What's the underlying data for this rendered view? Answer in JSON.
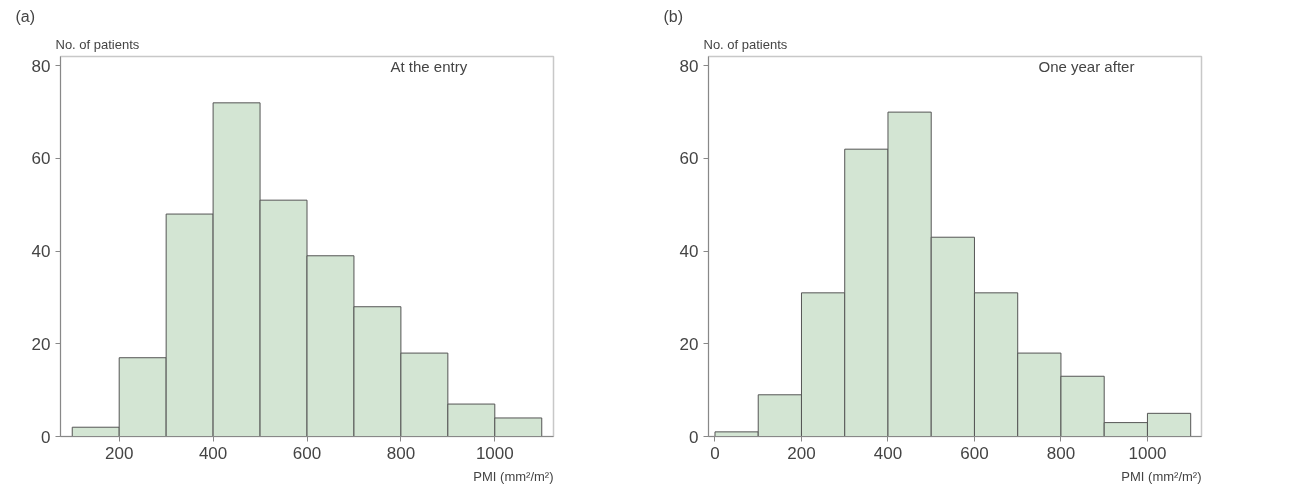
{
  "chart_data": [
    {
      "type": "histogram",
      "title": "(a)",
      "ylabel": "No. of patients",
      "xlabel": "PMI (mm²/m²)",
      "annotations": [
        "At the entry"
      ],
      "bins": [
        100,
        200,
        300,
        400,
        500,
        600,
        700,
        800,
        900,
        1000,
        1100
      ],
      "values": [
        2,
        17,
        48,
        72,
        51,
        39,
        28,
        18,
        7,
        4
      ],
      "color": "#d3e5d3",
      "xlim": [
        75,
        1125
      ],
      "xticks": [
        200,
        400,
        600,
        800,
        1000
      ],
      "ylim": [
        0,
        82
      ],
      "yticks": [
        0,
        20,
        40,
        60,
        80
      ],
      "grid": false
    },
    {
      "type": "histogram",
      "title": "(b)",
      "ylabel": "No. of patients",
      "xlabel": "PMI (mm²/m²)",
      "annotations": [
        "One year after"
      ],
      "bins": [
        0,
        100,
        200,
        300,
        400,
        500,
        600,
        700,
        800,
        900,
        1000,
        1100
      ],
      "values": [
        1,
        9,
        31,
        62,
        70,
        43,
        31,
        18,
        13,
        3,
        5
      ],
      "color": "#d3e5d3",
      "xlim": [
        -15,
        1125
      ],
      "xticks": [
        0,
        200,
        400,
        600,
        800,
        1000
      ],
      "ylim": [
        0,
        82
      ],
      "yticks": [
        0,
        20,
        40,
        60,
        80
      ],
      "grid": false
    }
  ]
}
